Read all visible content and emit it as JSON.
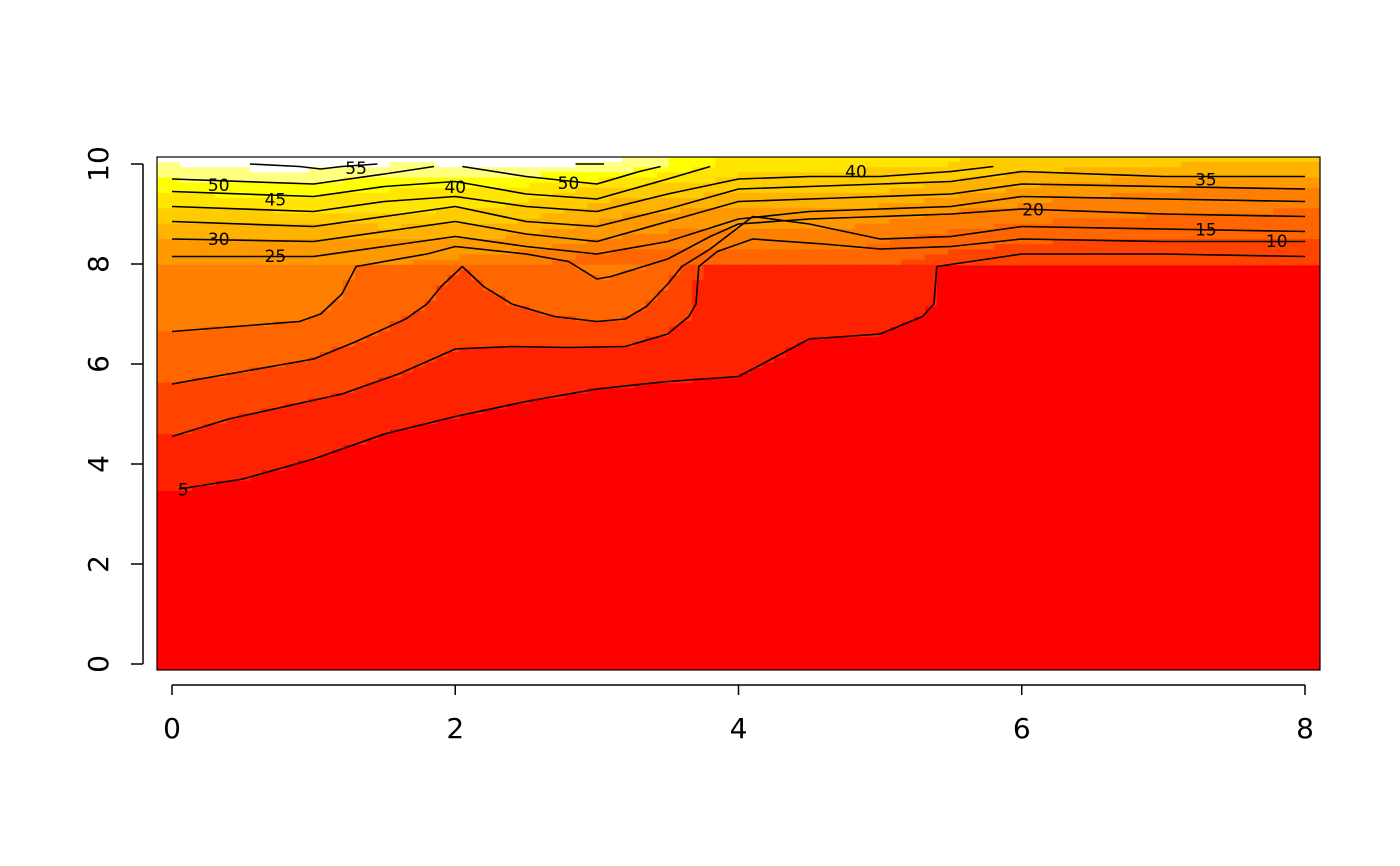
{
  "chart_data": {
    "type": "heatmap",
    "subtype": "filled contour (image + contour lines)",
    "title": "",
    "xlabel": "",
    "ylabel": "",
    "xlim": [
      0,
      8
    ],
    "ylim": [
      0,
      10
    ],
    "x_ticks": [
      0,
      2,
      4,
      6,
      8
    ],
    "y_ticks": [
      0,
      2,
      4,
      6,
      8,
      10
    ],
    "color_scale": [
      "#ff0000",
      "#ff2200",
      "#ff4400",
      "#ff6600",
      "#ff7f00",
      "#ff9900",
      "#ffb200",
      "#ffcc00",
      "#ffe500",
      "#ffff00",
      "#ffff80",
      "#ffffff"
    ],
    "value_range": [
      0,
      60
    ],
    "grid": false,
    "x_grid": [
      0,
      0.8,
      1.6,
      2.4,
      3.2,
      4.0,
      4.8,
      5.6,
      6.4,
      7.2,
      8.0
    ],
    "y_grid": [
      8.0,
      8.5,
      9.0,
      9.5,
      10.0
    ],
    "grid_values": [
      [
        25,
        25,
        25,
        22,
        15,
        17,
        17,
        12,
        10,
        10,
        10
      ],
      [
        30,
        30,
        30,
        29,
        24,
        22,
        22,
        17,
        15,
        15,
        15
      ],
      [
        38,
        39,
        40,
        38,
        30,
        28,
        28,
        24,
        21,
        20,
        19
      ],
      [
        47,
        48,
        45,
        44,
        38,
        37,
        37,
        32,
        27,
        25,
        25
      ],
      [
        55,
        58,
        55,
        56,
        55,
        42,
        41,
        40,
        37,
        35,
        35
      ]
    ],
    "contour_levels": [
      5,
      10,
      15,
      20,
      25,
      30,
      35,
      40,
      45,
      50,
      55
    ],
    "contours": [
      {
        "level": 5,
        "label": "5",
        "points": [
          [
            0.05,
            3.5
          ],
          [
            0.5,
            3.7
          ],
          [
            1.0,
            4.1
          ],
          [
            1.5,
            4.6
          ],
          [
            2.0,
            4.95
          ],
          [
            2.5,
            5.25
          ],
          [
            3.0,
            5.5
          ],
          [
            3.5,
            5.65
          ],
          [
            4.0,
            5.75
          ],
          [
            4.1,
            5.9
          ],
          [
            4.3,
            6.2
          ],
          [
            4.5,
            6.5
          ],
          [
            5.0,
            6.6
          ],
          [
            5.3,
            6.95
          ],
          [
            5.38,
            7.2
          ],
          [
            5.4,
            7.95
          ],
          [
            6.0,
            8.2
          ],
          [
            7.0,
            8.2
          ],
          [
            8.0,
            8.15
          ]
        ]
      },
      {
        "level": 10,
        "label": "10",
        "points": [
          [
            0.0,
            4.55
          ],
          [
            0.4,
            4.9
          ],
          [
            0.8,
            5.15
          ],
          [
            1.2,
            5.4
          ],
          [
            1.6,
            5.8
          ],
          [
            2.0,
            6.3
          ],
          [
            2.4,
            6.35
          ],
          [
            2.8,
            6.33
          ],
          [
            3.2,
            6.35
          ],
          [
            3.5,
            6.6
          ],
          [
            3.65,
            6.95
          ],
          [
            3.7,
            7.2
          ],
          [
            3.72,
            7.95
          ],
          [
            3.85,
            8.25
          ],
          [
            4.1,
            8.5
          ],
          [
            4.6,
            8.4
          ],
          [
            5.0,
            8.3
          ],
          [
            5.5,
            8.35
          ],
          [
            6.0,
            8.5
          ],
          [
            7.0,
            8.45
          ],
          [
            8.0,
            8.45
          ]
        ]
      },
      {
        "level": 15,
        "label": "15",
        "points": [
          [
            0.0,
            5.6
          ],
          [
            0.5,
            5.85
          ],
          [
            1.0,
            6.1
          ],
          [
            1.3,
            6.45
          ],
          [
            1.65,
            6.9
          ],
          [
            1.8,
            7.2
          ],
          [
            1.9,
            7.55
          ],
          [
            2.05,
            7.95
          ],
          [
            2.2,
            7.55
          ],
          [
            2.4,
            7.2
          ],
          [
            2.7,
            6.95
          ],
          [
            3.0,
            6.85
          ],
          [
            3.2,
            6.9
          ],
          [
            3.35,
            7.15
          ],
          [
            3.5,
            7.6
          ],
          [
            3.6,
            7.95
          ],
          [
            3.8,
            8.3
          ],
          [
            4.1,
            8.95
          ],
          [
            4.5,
            8.8
          ],
          [
            5.0,
            8.5
          ],
          [
            5.5,
            8.55
          ],
          [
            6.0,
            8.75
          ],
          [
            7.0,
            8.7
          ],
          [
            8.0,
            8.65
          ]
        ]
      },
      {
        "level": 20,
        "label": "20",
        "points": [
          [
            0.0,
            6.65
          ],
          [
            0.9,
            6.85
          ],
          [
            1.05,
            7.0
          ],
          [
            1.2,
            7.4
          ],
          [
            1.3,
            7.95
          ],
          [
            1.8,
            8.2
          ],
          [
            2.0,
            8.35
          ],
          [
            2.5,
            8.2
          ],
          [
            2.8,
            8.05
          ],
          [
            3.0,
            7.7
          ],
          [
            3.1,
            7.75
          ],
          [
            3.5,
            8.1
          ],
          [
            3.8,
            8.55
          ],
          [
            4.0,
            8.8
          ],
          [
            4.5,
            8.9
          ],
          [
            5.0,
            8.95
          ],
          [
            5.5,
            9.0
          ],
          [
            6.0,
            9.1
          ],
          [
            7.0,
            9.0
          ],
          [
            8.0,
            8.95
          ]
        ]
      },
      {
        "level": 25,
        "label": "25",
        "points": [
          [
            0.0,
            8.15
          ],
          [
            1.0,
            8.15
          ],
          [
            1.5,
            8.35
          ],
          [
            2.0,
            8.55
          ],
          [
            2.5,
            8.35
          ],
          [
            3.0,
            8.2
          ],
          [
            3.5,
            8.45
          ],
          [
            4.0,
            8.9
          ],
          [
            4.5,
            9.05
          ],
          [
            5.0,
            9.1
          ],
          [
            5.5,
            9.15
          ],
          [
            6.0,
            9.35
          ],
          [
            7.0,
            9.3
          ],
          [
            8.0,
            9.25
          ]
        ]
      },
      {
        "level": 30,
        "label": "30",
        "points": [
          [
            0.0,
            8.5
          ],
          [
            1.0,
            8.45
          ],
          [
            1.5,
            8.65
          ],
          [
            2.0,
            8.85
          ],
          [
            2.5,
            8.6
          ],
          [
            3.0,
            8.45
          ],
          [
            3.5,
            8.85
          ],
          [
            4.0,
            9.25
          ],
          [
            4.5,
            9.3
          ],
          [
            5.0,
            9.35
          ],
          [
            5.5,
            9.4
          ],
          [
            6.0,
            9.6
          ],
          [
            7.0,
            9.55
          ],
          [
            8.0,
            9.5
          ]
        ]
      },
      {
        "level": 35,
        "label": "35",
        "points": [
          [
            0.0,
            8.85
          ],
          [
            1.0,
            8.75
          ],
          [
            1.5,
            8.95
          ],
          [
            2.0,
            9.15
          ],
          [
            2.5,
            8.85
          ],
          [
            3.0,
            8.75
          ],
          [
            3.5,
            9.1
          ],
          [
            4.0,
            9.5
          ],
          [
            4.5,
            9.55
          ],
          [
            5.0,
            9.6
          ],
          [
            5.5,
            9.65
          ],
          [
            6.0,
            9.85
          ],
          [
            7.0,
            9.75
          ],
          [
            8.0,
            9.75
          ]
        ]
      },
      {
        "level": 40,
        "label": "40",
        "points": [
          [
            0.0,
            9.15
          ],
          [
            1.0,
            9.05
          ],
          [
            1.5,
            9.25
          ],
          [
            2.0,
            9.35
          ],
          [
            2.5,
            9.15
          ],
          [
            3.0,
            9.05
          ],
          [
            3.5,
            9.4
          ],
          [
            4.0,
            9.7
          ],
          [
            4.5,
            9.75
          ],
          [
            5.0,
            9.75
          ],
          [
            5.5,
            9.85
          ],
          [
            5.8,
            9.95
          ]
        ]
      },
      {
        "level": 45,
        "label": "45",
        "points": [
          [
            0.0,
            9.45
          ],
          [
            1.0,
            9.35
          ],
          [
            1.5,
            9.55
          ],
          [
            2.0,
            9.65
          ],
          [
            2.5,
            9.4
          ],
          [
            3.0,
            9.3
          ],
          [
            3.5,
            9.7
          ],
          [
            3.8,
            9.95
          ]
        ]
      },
      {
        "level": 50,
        "label": "50",
        "points": [
          [
            0.0,
            9.7
          ],
          [
            1.0,
            9.6
          ],
          [
            1.5,
            9.8
          ],
          [
            1.85,
            9.95
          ]
        ]
      },
      {
        "level": 50,
        "label": "50",
        "points": [
          [
            2.05,
            9.95
          ],
          [
            2.5,
            9.75
          ],
          [
            3.0,
            9.6
          ],
          [
            3.3,
            9.85
          ],
          [
            3.45,
            9.95
          ]
        ]
      },
      {
        "level": 55,
        "label": "55",
        "points": [
          [
            0.55,
            10.0
          ],
          [
            0.9,
            9.95
          ],
          [
            1.05,
            9.9
          ],
          [
            1.2,
            9.95
          ],
          [
            1.45,
            10.0
          ]
        ]
      },
      {
        "level": 55,
        "label": "",
        "points": [
          [
            2.85,
            10.0
          ],
          [
            3.05,
            10.0
          ]
        ]
      }
    ],
    "contour_labels": [
      {
        "text": "5",
        "x": 0.08,
        "y": 3.47
      },
      {
        "text": "10",
        "x": 7.8,
        "y": 8.44
      },
      {
        "text": "15",
        "x": 7.3,
        "y": 8.67
      },
      {
        "text": "20",
        "x": 6.08,
        "y": 9.07
      },
      {
        "text": "25",
        "x": 0.73,
        "y": 8.14
      },
      {
        "text": "30",
        "x": 0.33,
        "y": 8.48
      },
      {
        "text": "35",
        "x": 7.3,
        "y": 9.67
      },
      {
        "text": "40",
        "x": 2.0,
        "y": 9.52
      },
      {
        "text": "40",
        "x": 4.83,
        "y": 9.83
      },
      {
        "text": "45",
        "x": 0.73,
        "y": 9.27
      },
      {
        "text": "50",
        "x": 0.33,
        "y": 9.56
      },
      {
        "text": "50",
        "x": 2.8,
        "y": 9.6
      },
      {
        "text": "55",
        "x": 1.3,
        "y": 9.9
      }
    ]
  }
}
